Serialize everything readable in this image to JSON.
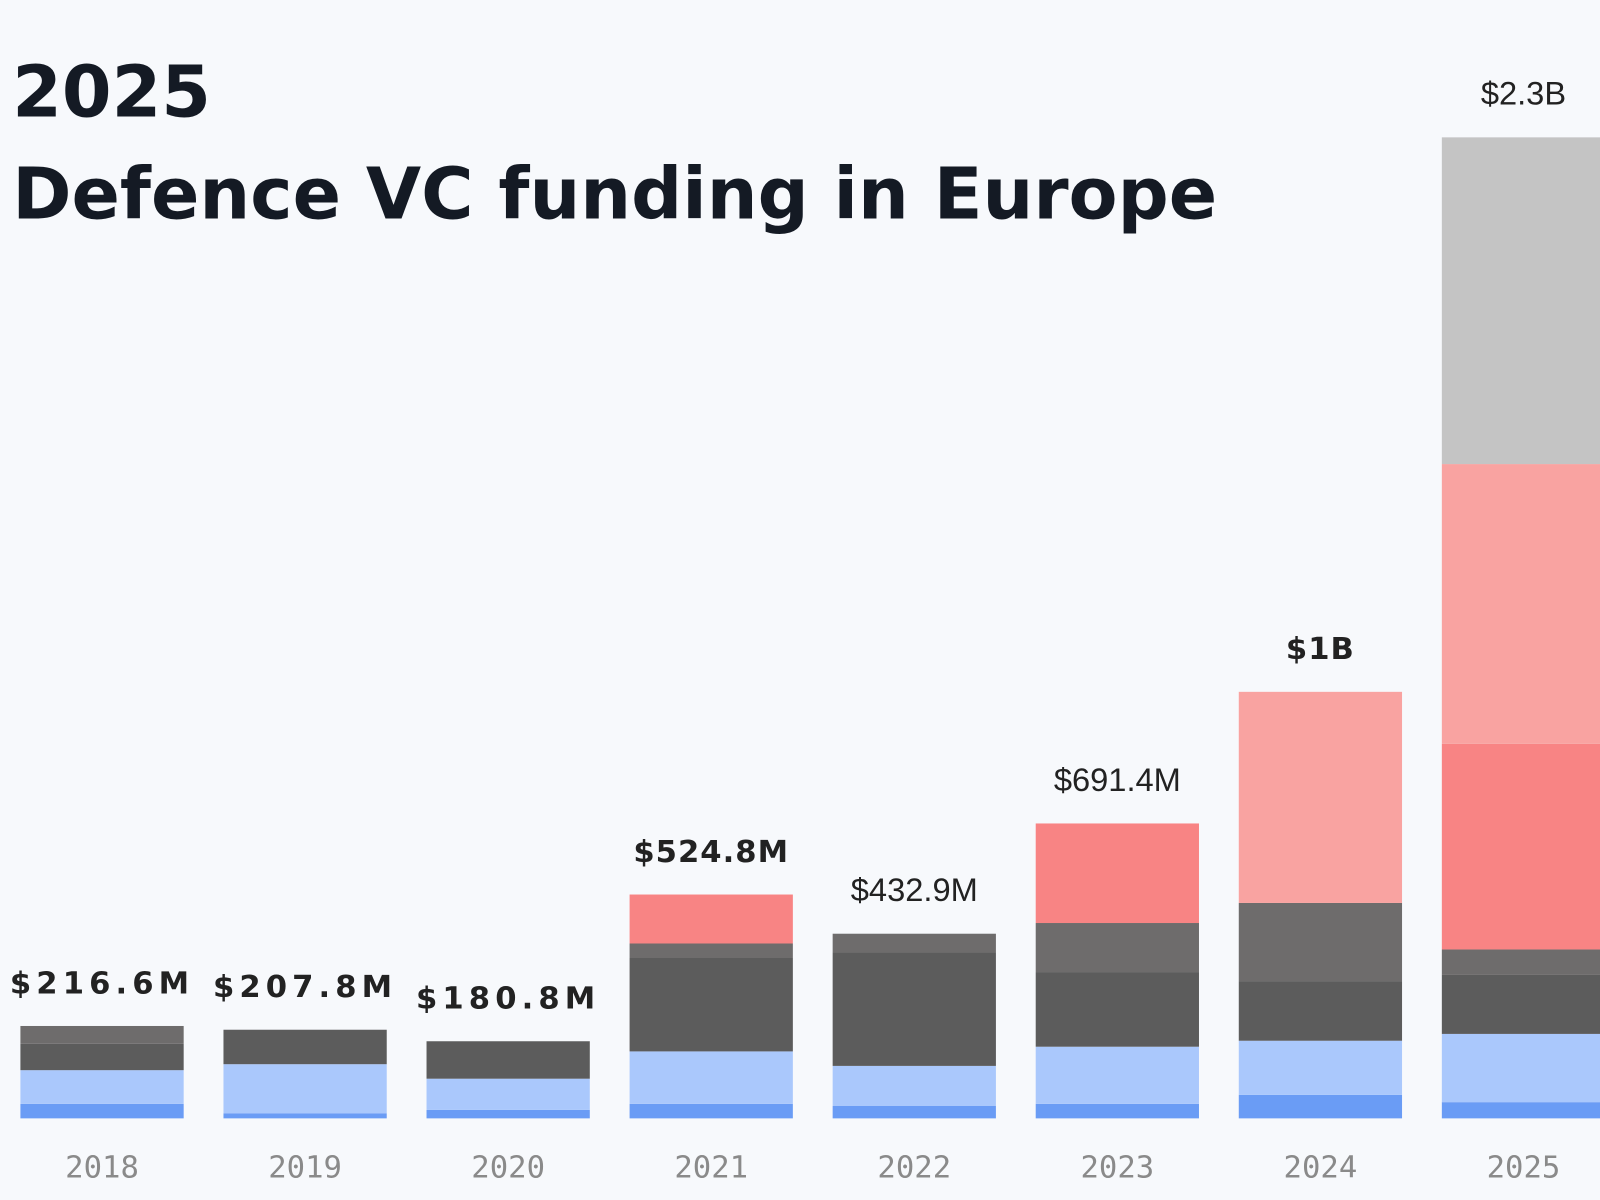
{
  "chart_data": {
    "type": "stacked_bar",
    "title": "2025",
    "subtitle": "Defence VC funding in Europe",
    "categories": [
      "2018",
      "2019",
      "2020",
      "2021",
      "2022",
      "2023",
      "2024",
      "2025"
    ],
    "series": [
      {
        "color": "#6a9cf5",
        "values": [
          34,
          12,
          20,
          34,
          29,
          34,
          55,
          38
        ]
      },
      {
        "color": "#aac8fc",
        "values": [
          79,
          115,
          73,
          123,
          94,
          134,
          127,
          160
        ]
      },
      {
        "color": "#5c5c5c",
        "values": [
          62,
          80.8,
          87.8,
          219,
          266,
          175,
          139,
          139
        ]
      },
      {
        "color": "#6e6c6c",
        "values": [
          41.6,
          0,
          0,
          34,
          43.9,
          115,
          184,
          59
        ]
      },
      {
        "color": "#f88484",
        "values": [
          0,
          0,
          0,
          114.8,
          0,
          233.4,
          0,
          482
        ]
      },
      {
        "color": "#f9a3a1",
        "values": [
          0,
          0,
          0,
          0,
          0,
          0,
          495,
          656
        ]
      },
      {
        "color": "#c4c4c4",
        "values": [
          0,
          0,
          0,
          0,
          0,
          0,
          0,
          766
        ]
      }
    ],
    "totals": {
      "values": [
        216.6,
        207.8,
        180.8,
        524.8,
        432.9,
        691.4,
        1000,
        2300
      ],
      "value_labels": [
        "$216.6M",
        "$207.8M",
        "$180.8M",
        "$524.8M",
        "$432.9M",
        "$691.4M",
        "$1B",
        "$2.3B"
      ]
    }
  }
}
